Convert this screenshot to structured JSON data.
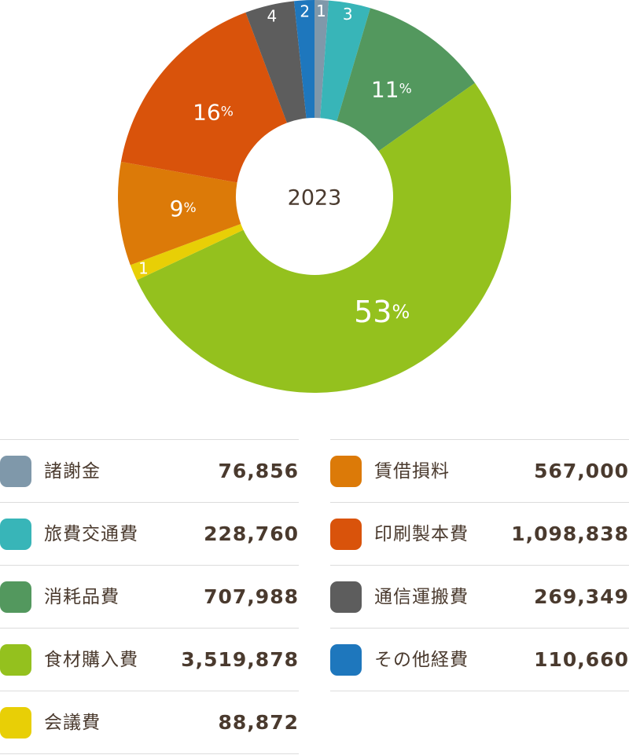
{
  "chart_data": {
    "type": "pie",
    "center_label": "2023",
    "slices": [
      {
        "category": "諸謝金",
        "amount": "76,856",
        "value": 76856,
        "label": "1",
        "color": "#7f98aa"
      },
      {
        "category": "旅費交通費",
        "amount": "228,760",
        "value": 228760,
        "label": "3",
        "color": "#38b5b8"
      },
      {
        "category": "消耗品費",
        "amount": "707,988",
        "value": 707988,
        "label": "11%",
        "color": "#53985e"
      },
      {
        "category": "食材購入費",
        "amount": "3,519,878",
        "value": 3519878,
        "label": "53%",
        "color": "#94c11e"
      },
      {
        "category": "会議費",
        "amount": "88,872",
        "value": 88872,
        "label": "1",
        "color": "#e8cf06"
      },
      {
        "category": "賃借損料",
        "amount": "567,000",
        "value": 567000,
        "label": "9%",
        "color": "#dc7a08"
      },
      {
        "category": "印刷製本費",
        "amount": "1,098,838",
        "value": 1098838,
        "label": "16%",
        "color": "#d9530b"
      },
      {
        "category": "通信運搬費",
        "amount": "269,349",
        "value": 269349,
        "label": "4",
        "color": "#5d5d5d"
      },
      {
        "category": "その他経費",
        "amount": "110,660",
        "value": 110660,
        "label": "2",
        "color": "#1e77bd"
      }
    ]
  },
  "legend": {
    "left": [
      {
        "category": "諸謝金",
        "amount": "76,856",
        "color": "#7f98aa"
      },
      {
        "category": "旅費交通費",
        "amount": "228,760",
        "color": "#38b5b8"
      },
      {
        "category": "消耗品費",
        "amount": "707,988",
        "color": "#53985e"
      },
      {
        "category": "食材購入費",
        "amount": "3,519,878",
        "color": "#94c11e"
      },
      {
        "category": "会議費",
        "amount": "88,872",
        "color": "#e8cf06"
      }
    ],
    "right": [
      {
        "category": "賃借損料",
        "amount": "567,000",
        "color": "#dc7a08"
      },
      {
        "category": "印刷製本費",
        "amount": "1,098,838",
        "color": "#d9530b"
      },
      {
        "category": "通信運搬費",
        "amount": "269,349",
        "color": "#5d5d5d"
      },
      {
        "category": "その他経費",
        "amount": "110,660",
        "color": "#1e77bd"
      }
    ]
  }
}
